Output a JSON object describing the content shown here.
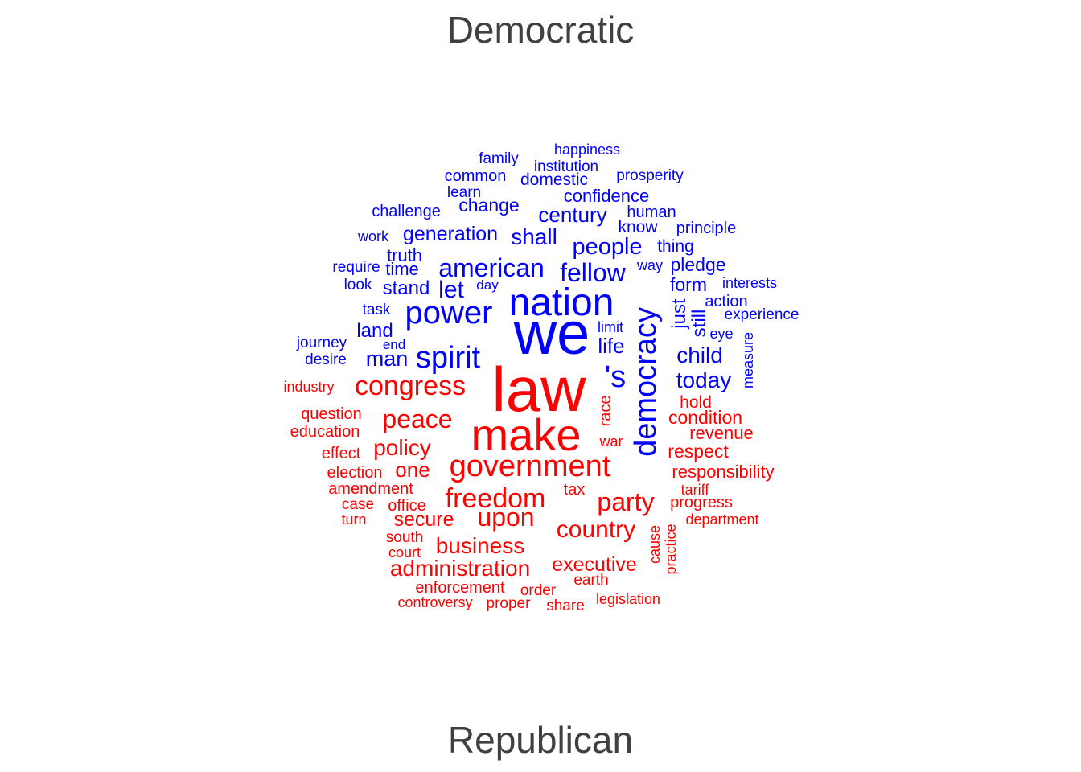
{
  "groups": {
    "top": {
      "label": "Democratic",
      "color": "#0000ff"
    },
    "bottom": {
      "label": "Republican",
      "color": "#ff0000"
    }
  },
  "chart_data": {
    "type": "comparison-wordcloud",
    "groups": [
      "Democratic",
      "Republican"
    ],
    "colors": {
      "Democratic": "#0000ff",
      "Republican": "#ff0000"
    },
    "words": {
      "Democratic": [
        "we",
        "nation",
        "power",
        "democracy",
        "spirit",
        "american",
        "fellow",
        "people",
        "'s",
        "today",
        "child",
        "shall",
        "century",
        "generation",
        "let",
        "stand",
        "man",
        "land",
        "life",
        "still",
        "just",
        "form",
        "pledge",
        "change",
        "confidence",
        "truth",
        "time",
        "common",
        "domestic",
        "institution",
        "family",
        "happiness",
        "prosperity",
        "learn",
        "challenge",
        "human",
        "know",
        "principle",
        "thing",
        "work",
        "require",
        "way",
        "look",
        "day",
        "interests",
        "action",
        "experience",
        "task",
        "limit",
        "eye",
        "journey",
        "end",
        "desire",
        "measure"
      ],
      "Republican": [
        "law",
        "make",
        "government",
        "congress",
        "peace",
        "freedom",
        "upon",
        "country",
        "party",
        "policy",
        "one",
        "business",
        "administration",
        "secure",
        "executive",
        "condition",
        "revenue",
        "respect",
        "responsibility",
        "race",
        "war",
        "hold",
        "tax",
        "tariff",
        "progress",
        "department",
        "cause",
        "practice",
        "question",
        "education",
        "industry",
        "effect",
        "election",
        "amendment",
        "case",
        "office",
        "turn",
        "south",
        "court",
        "enforcement",
        "order",
        "earth",
        "controversy",
        "proper",
        "share",
        "legislation"
      ]
    }
  }
}
